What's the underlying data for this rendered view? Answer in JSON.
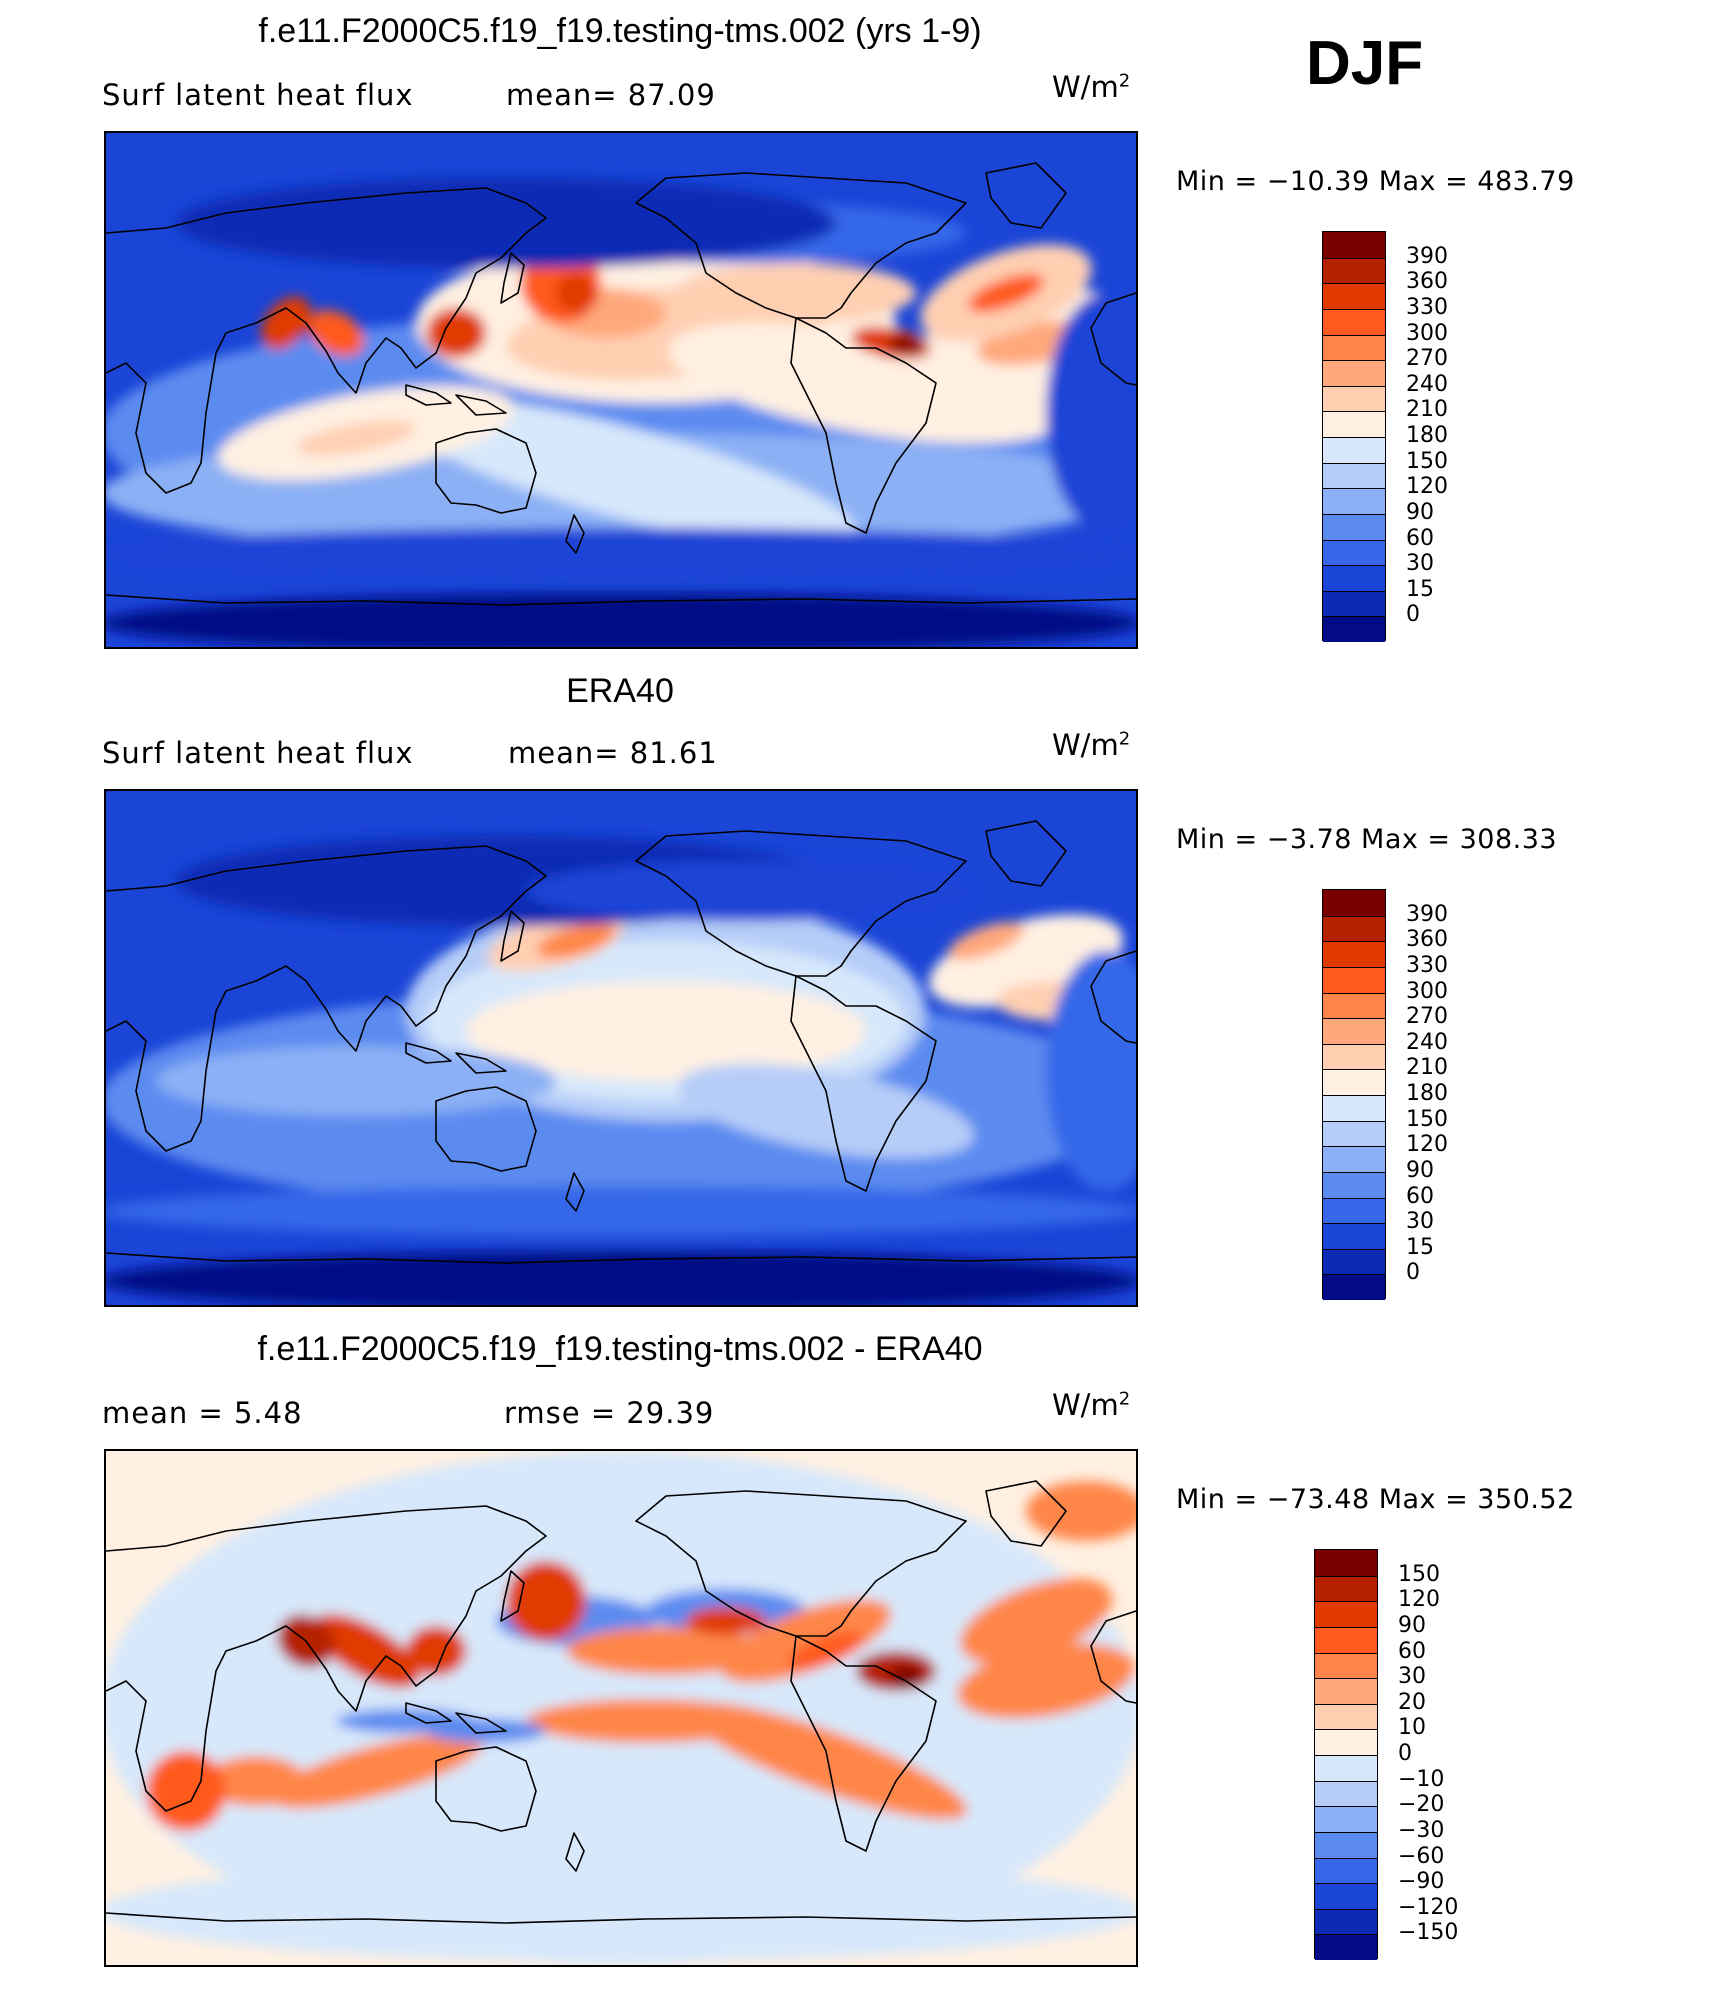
{
  "season": "DJF",
  "panels": [
    {
      "title": "f.e11.F2000C5.f19_f19.testing-tms.002 (yrs 1-9)",
      "left_label": "Surf  latent  heat  flux",
      "stat_label": "mean=  87.09",
      "units_base": "W/m",
      "units_exp": "2",
      "minmax": "Min  =  −10.39  Max  =  483.79",
      "field": "model"
    },
    {
      "title": "ERA40",
      "left_label": "Surf  latent  heat  flux",
      "stat_label": "mean=  81.61",
      "units_base": "W/m",
      "units_exp": "2",
      "minmax": "Min  =    −3.78  Max  =  308.33",
      "field": "obs"
    },
    {
      "title": "f.e11.F2000C5.f19_f19.testing-tms.002 - ERA40",
      "left_label": "mean  =      5.48",
      "stat_label": "rmse  =    29.39",
      "units_base": "W/m",
      "units_exp": "2",
      "minmax": "Min  =  −73.48  Max  =  350.52",
      "field": "diff"
    }
  ],
  "colorbars": {
    "absolute": {
      "ticks": [
        "390",
        "360",
        "330",
        "300",
        "270",
        "240",
        "210",
        "180",
        "150",
        "120",
        "90",
        "60",
        "30",
        "15",
        "0"
      ],
      "colors": [
        "#7a0000",
        "#b52000",
        "#e03a00",
        "#ff5a1f",
        "#ff8648",
        "#ffa87c",
        "#ffcfb2",
        "#fff0e2",
        "#d7e8fb",
        "#b6cdf8",
        "#8cb0f5",
        "#5c8bf0",
        "#3567e8",
        "#1a45d7",
        "#0c2ab4",
        "#020a85"
      ]
    },
    "difference": {
      "ticks": [
        "150",
        "120",
        "90",
        "60",
        "30",
        "20",
        "10",
        "0",
        "−10",
        "−20",
        "−30",
        "−60",
        "−90",
        "−120",
        "−150"
      ],
      "colors": [
        "#7a0000",
        "#b52000",
        "#e03a00",
        "#ff5a1f",
        "#ff8648",
        "#ffa87c",
        "#ffcfb2",
        "#fff0e2",
        "#d7e8fb",
        "#b6cdf8",
        "#8cb0f5",
        "#5c8bf0",
        "#3567e8",
        "#1a45d7",
        "#0c2ab4",
        "#020a85"
      ]
    }
  },
  "chart_data": [
    {
      "type": "heatmap",
      "title": "f.e11.F2000C5.f19_f19.testing-tms.002 (yrs 1-9)",
      "variable": "Surf latent heat flux",
      "units": "W/m2",
      "mean": 87.09,
      "min": -10.39,
      "max": 483.79,
      "contour_levels": [
        0,
        15,
        30,
        60,
        90,
        120,
        150,
        180,
        210,
        240,
        270,
        300,
        330,
        360,
        390
      ],
      "projection": "cylindrical equidistant, centered on Pacific"
    },
    {
      "type": "heatmap",
      "title": "ERA40",
      "variable": "Surf latent heat flux",
      "units": "W/m2",
      "mean": 81.61,
      "min": -3.78,
      "max": 308.33,
      "contour_levels": [
        0,
        15,
        30,
        60,
        90,
        120,
        150,
        180,
        210,
        240,
        270,
        300,
        330,
        360,
        390
      ],
      "projection": "cylindrical equidistant, centered on Pacific"
    },
    {
      "type": "heatmap",
      "title": "f.e11.F2000C5.f19_f19.testing-tms.002 - ERA40",
      "units": "W/m2",
      "mean": 5.48,
      "rmse": 29.39,
      "min": -73.48,
      "max": 350.52,
      "contour_levels": [
        -150,
        -120,
        -90,
        -60,
        -30,
        -20,
        -10,
        0,
        10,
        20,
        30,
        60,
        90,
        120,
        150
      ],
      "projection": "cylindrical equidistant, centered on Pacific"
    }
  ]
}
